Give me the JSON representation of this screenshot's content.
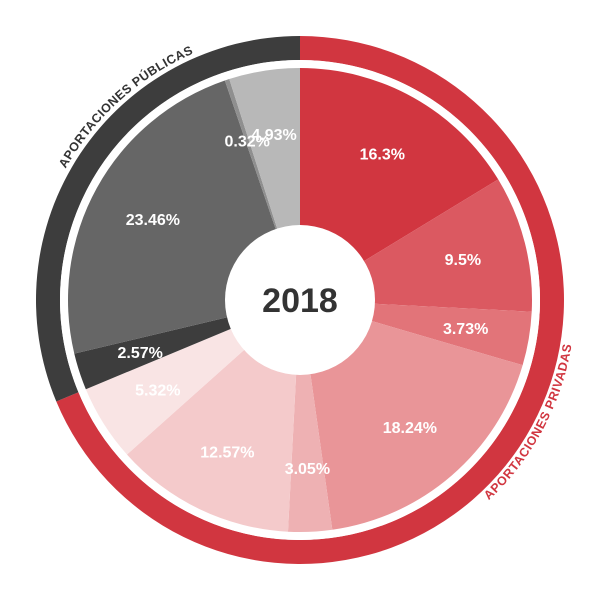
{
  "chart_data": {
    "type": "pie",
    "center_label": "2018",
    "groups": [
      {
        "name": "APORTACIONES PRIVADAS",
        "color": "#d13640"
      },
      {
        "name": "APORTACIONES PÚBLICAS",
        "color": "#3d3d3d"
      }
    ],
    "slices": [
      {
        "label": "16.3%",
        "value": 16.3,
        "group": 0,
        "color": "#d13640"
      },
      {
        "label": "9.5%",
        "value": 9.5,
        "group": 0,
        "color": "#db5961"
      },
      {
        "label": "3.73%",
        "value": 3.73,
        "group": 0,
        "color": "#e27479"
      },
      {
        "label": "18.24%",
        "value": 18.24,
        "group": 0,
        "color": "#e99598"
      },
      {
        "label": "3.05%",
        "value": 3.05,
        "group": 0,
        "color": "#eeb1b3"
      },
      {
        "label": "12.57%",
        "value": 12.57,
        "group": 0,
        "color": "#f4cacb"
      },
      {
        "label": "5.32%",
        "value": 5.32,
        "group": 0,
        "color": "#f9e4e4"
      },
      {
        "label": "2.57%",
        "value": 2.57,
        "group": 1,
        "color": "#3d3d3d"
      },
      {
        "label": "23.46%",
        "value": 23.46,
        "group": 1,
        "color": "#666666"
      },
      {
        "label": "0.32%",
        "value": 0.32,
        "group": 1,
        "color": "#8f8f8f"
      },
      {
        "label": "4.93%",
        "value": 4.93,
        "group": 1,
        "color": "#b8b8b8"
      }
    ]
  }
}
